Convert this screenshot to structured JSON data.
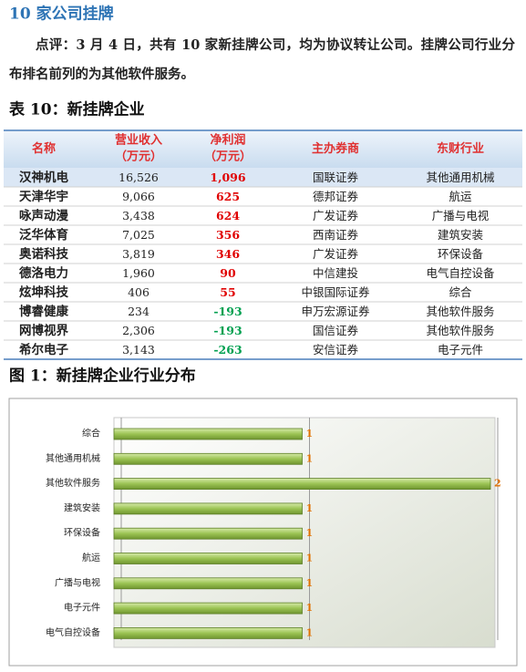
{
  "heading": "10 家公司挂牌",
  "paragraph": "点评：3 月 4 日，共有 10 家新挂牌公司，均为协议转让公司。挂牌公司行业分布排名前列的为其他软件服务。",
  "table": {
    "title": "表 10：新挂牌企业",
    "header": [
      [
        "名称"
      ],
      [
        "营业收入",
        "（万元）"
      ],
      [
        "净利润",
        "（万元）"
      ],
      [
        "主办券商"
      ],
      [
        "东财行业"
      ]
    ],
    "rows": [
      [
        "汉神机电",
        "16,526",
        "1,096",
        "国联证券",
        "其他通用机械"
      ],
      [
        "天津华宇",
        "9,066",
        "625",
        "德邦证券",
        "航运"
      ],
      [
        "咏声动漫",
        "3,438",
        "624",
        "广发证券",
        "广播与电视"
      ],
      [
        "泛华体育",
        "7,025",
        "356",
        "西南证券",
        "建筑安装"
      ],
      [
        "奥诺科技",
        "3,819",
        "346",
        "广发证券",
        "环保设备"
      ],
      [
        "德洛电力",
        "1,960",
        "90",
        "中信建投",
        "电气自控设备"
      ],
      [
        "炫坤科技",
        "406",
        "55",
        "中银国际证券",
        "综合"
      ],
      [
        "博睿健康",
        "234",
        "-193",
        "申万宏源证券",
        "其他软件服务"
      ],
      [
        "网博视界",
        "2,306",
        "-193",
        "国信证券",
        "其他软件服务"
      ],
      [
        "希尔电子",
        "3,143",
        "-263",
        "安信证券",
        "电子元件"
      ]
    ]
  },
  "figure": {
    "title": "图 1：新挂牌企业行业分布",
    "chart_data": {
      "type": "bar",
      "orientation": "horizontal",
      "categories": [
        "综合",
        "其他通用机械",
        "其他软件服务",
        "建筑安装",
        "环保设备",
        "航运",
        "广播与电视",
        "电子元件",
        "电气自控设备"
      ],
      "values": [
        1,
        1,
        2,
        1,
        1,
        1,
        1,
        1,
        1
      ],
      "color": "#9bc353",
      "label_color": "#e07000",
      "xlim": [
        0,
        2
      ],
      "xticks": [
        0,
        1,
        2
      ],
      "grid": true
    }
  }
}
